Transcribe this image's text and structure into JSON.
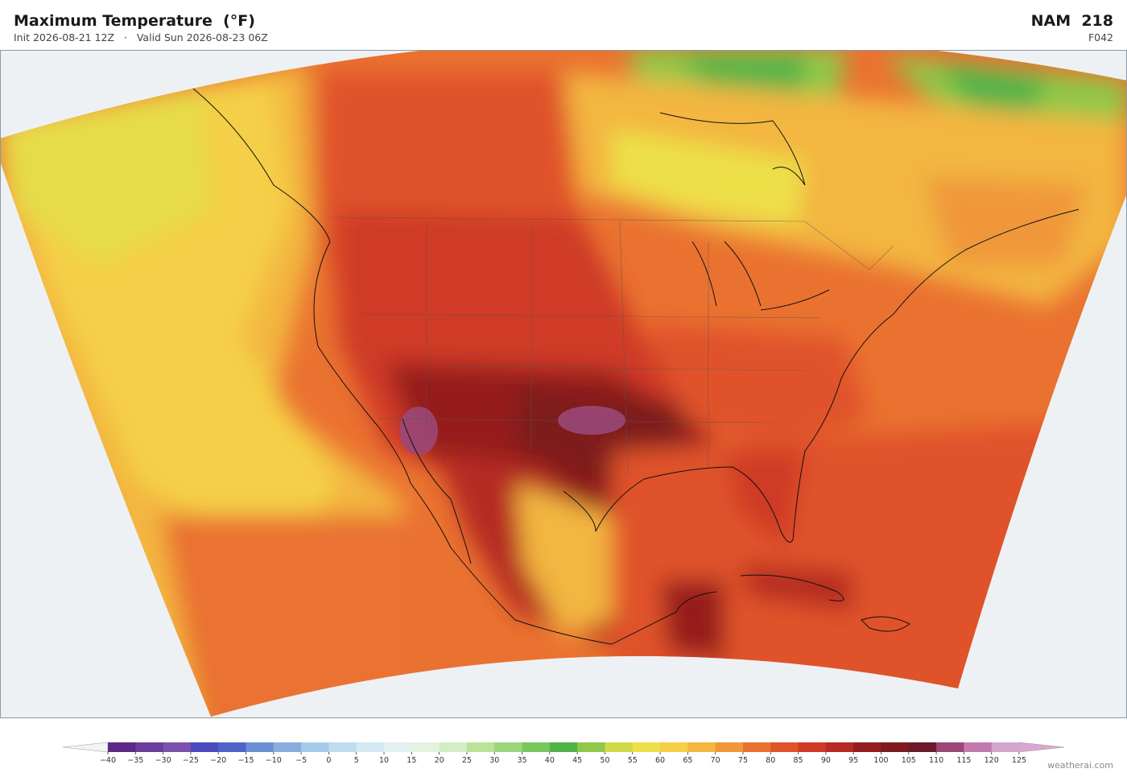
{
  "header": {
    "title": "Maximum Temperature  (°F)",
    "subtitle": "Init 2026-08-21 12Z   ·   Valid Sun 2026-08-23 06Z",
    "model": "NAM  218",
    "forecast_hour": "F042"
  },
  "colorbar": {
    "ticks": [
      {
        "value": -40,
        "label": "−40"
      },
      {
        "value": -35,
        "label": "−35"
      },
      {
        "value": -30,
        "label": "−30"
      },
      {
        "value": -25,
        "label": "−25"
      },
      {
        "value": -20,
        "label": "−20"
      },
      {
        "value": -15,
        "label": "−15"
      },
      {
        "value": -10,
        "label": "−10"
      },
      {
        "value": -5,
        "label": "−5"
      },
      0,
      5,
      10,
      15,
      20,
      25,
      30,
      35,
      40,
      45,
      50,
      55,
      60,
      65,
      70,
      75,
      80,
      85,
      90,
      95,
      100,
      105,
      110,
      115,
      120,
      125
    ],
    "colors": [
      "#5b2a86",
      "#6a3d9a",
      "#7b52ab",
      "#4b4bbf",
      "#4f63c9",
      "#6b8fd6",
      "#88aee0",
      "#a6cbe8",
      "#bfdcee",
      "#d4e9f2",
      "#e3f1f1",
      "#e3f3e0",
      "#d3edc6",
      "#b9e29a",
      "#9cd57e",
      "#79c65e",
      "#4fb34a",
      "#8fc84a",
      "#cfd94a",
      "#ede04a",
      "#f5cf47",
      "#f3b640",
      "#f0973a",
      "#ea7230",
      "#e0532a",
      "#cf3a26",
      "#b52a22",
      "#961d1e",
      "#7e1a1e",
      "#6b1a2a",
      "#9b4878",
      "#c279b0",
      "#d5a6cc"
    ],
    "extend_low_color": "#f4f4f6",
    "extend_high_color": "#d9a8d0"
  },
  "watermark": "weatherai.com"
}
